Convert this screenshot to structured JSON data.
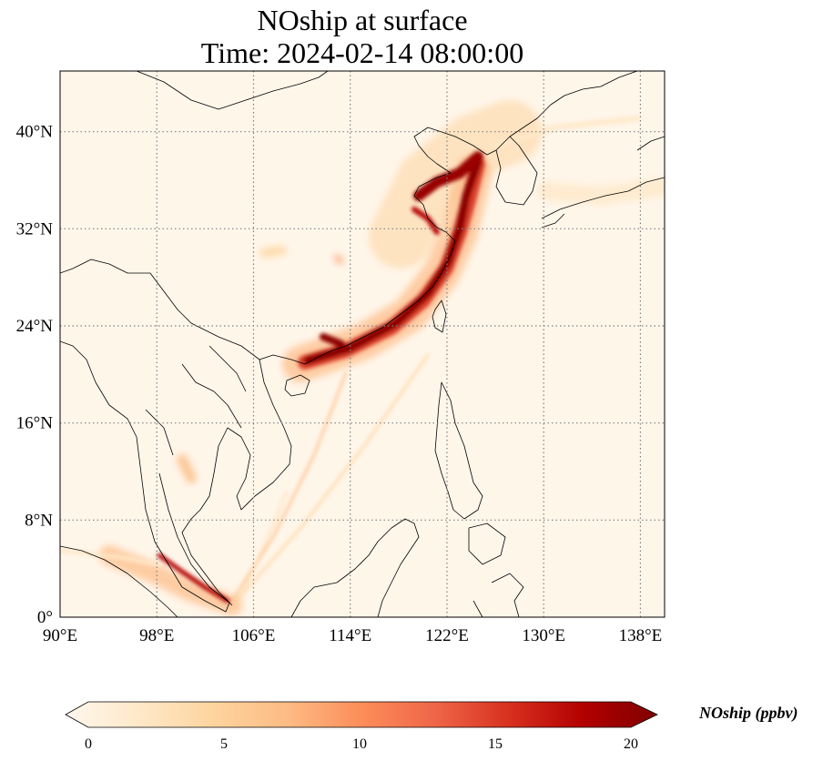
{
  "title_line1": "NOship at surface",
  "title_line2": "Time: 2024-02-14 08:00:00",
  "map": {
    "lon_range": [
      90,
      140
    ],
    "lat_range": [
      0,
      45
    ],
    "x_ticks": [
      {
        "value": 90,
        "label": "90°E"
      },
      {
        "value": 98,
        "label": "98°E"
      },
      {
        "value": 106,
        "label": "106°E"
      },
      {
        "value": 114,
        "label": "114°E"
      },
      {
        "value": 122,
        "label": "122°E"
      },
      {
        "value": 130,
        "label": "130°E"
      },
      {
        "value": 138,
        "label": "138°E"
      }
    ],
    "y_ticks": [
      {
        "value": 0,
        "label": "0°"
      },
      {
        "value": 8,
        "label": "8°N"
      },
      {
        "value": 16,
        "label": "16°N"
      },
      {
        "value": 24,
        "label": "24°N"
      },
      {
        "value": 32,
        "label": "32°N"
      },
      {
        "value": 40,
        "label": "40°N"
      }
    ],
    "gridlines": true,
    "colormap": "OrRd",
    "background_color": "#fff6ea",
    "coast_color": "#000000",
    "grid_color": "#7f7f7f"
  },
  "colorbar": {
    "min": 0,
    "max": 20,
    "ticks": [
      {
        "value": 0,
        "label": "0"
      },
      {
        "value": 5,
        "label": "5"
      },
      {
        "value": 10,
        "label": "10"
      },
      {
        "value": 15,
        "label": "15"
      },
      {
        "value": 20,
        "label": "20"
      }
    ],
    "label": "NOship (ppbv)",
    "extend": "both",
    "stops": [
      "#fff7ec",
      "#fee8c8",
      "#fdd49e",
      "#fdbb84",
      "#fc8d59",
      "#ef6548",
      "#d7301f",
      "#b30000",
      "#7f0000"
    ]
  }
}
